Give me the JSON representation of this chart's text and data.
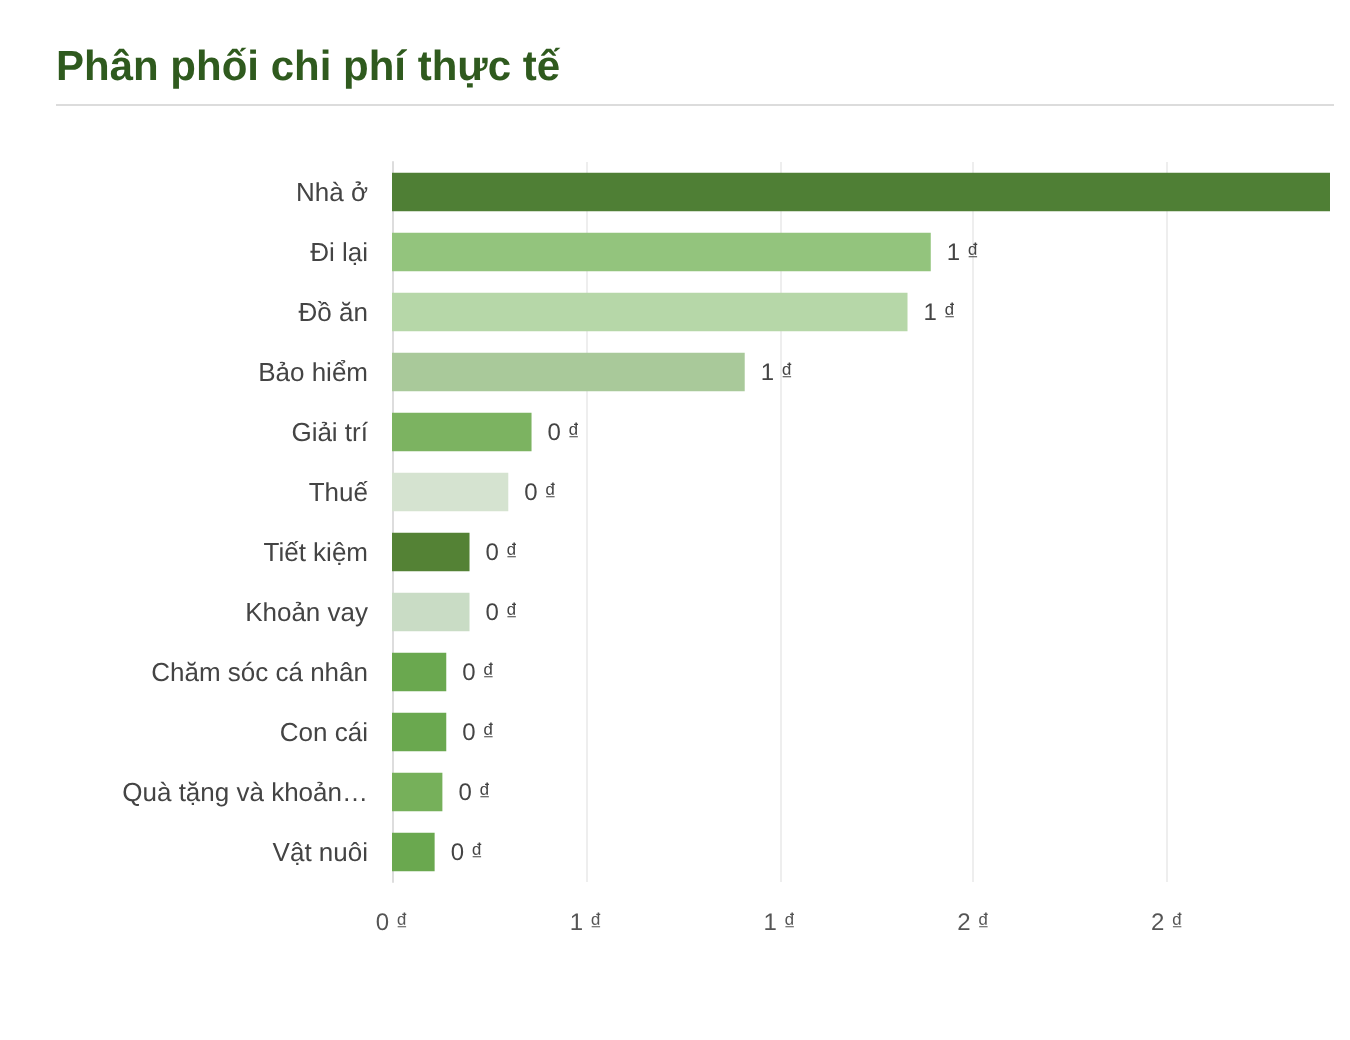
{
  "chart_data": {
    "type": "bar",
    "orientation": "horizontal",
    "title": "Phân phối chi phí thực tế",
    "categories": [
      "Nhà ở",
      "Đi lại",
      "Đồ ăn",
      "Bảo hiểm",
      "Giải trí",
      "Thuế",
      "Tiết kiệm",
      "Khoản vay",
      "Chăm sóc cá nhân",
      "Con cái",
      "Quà tặng và khoản…",
      "Vật nuôi"
    ],
    "values": [
      2.42,
      1.39,
      1.33,
      0.91,
      0.36,
      0.3,
      0.2,
      0.2,
      0.14,
      0.14,
      0.13,
      0.11
    ],
    "value_labels": [
      null,
      "1 ₫",
      "1 ₫",
      "1 ₫",
      "0 ₫",
      "0 ₫",
      "0 ₫",
      "0 ₫",
      "0 ₫",
      "0 ₫",
      "0 ₫",
      "0 ₫"
    ],
    "colors": [
      "#4f7f35",
      "#93c47d",
      "#b6d7a8",
      "#a9c99a",
      "#7cb361",
      "#d5e3d0",
      "#548235",
      "#c9dcc5",
      "#6aa84f",
      "#6aa84f",
      "#76b05a",
      "#6aa84f"
    ],
    "xlim": [
      0,
      2.42
    ],
    "xticks": [
      {
        "value": 0,
        "label": "0 ₫"
      },
      {
        "value": 0.5,
        "label": "1 ₫"
      },
      {
        "value": 1,
        "label": "1 ₫"
      },
      {
        "value": 1.5,
        "label": "2 ₫"
      },
      {
        "value": 2,
        "label": "2 ₫"
      }
    ],
    "grid": "x"
  }
}
